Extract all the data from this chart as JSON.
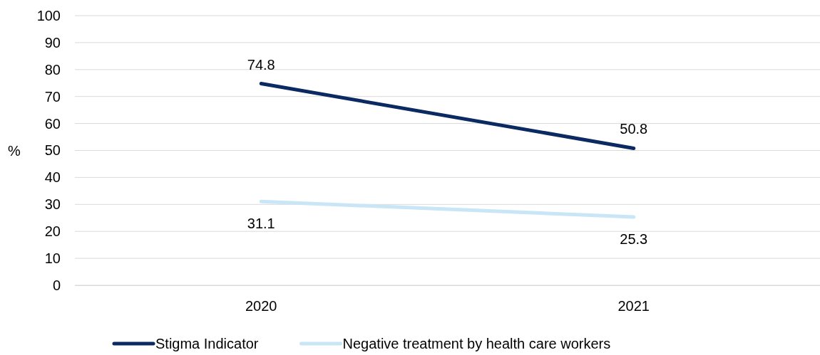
{
  "chart_data": {
    "type": "line",
    "ylabel": "%",
    "categories": [
      "2020",
      "2021"
    ],
    "series": [
      {
        "name": "Stigma Indicator",
        "color": "#0c2a62",
        "values": [
          74.8,
          50.8
        ]
      },
      {
        "name": "Negative treatment by health care workers",
        "color": "#c9e6f7",
        "values": [
          31.1,
          25.3
        ]
      }
    ],
    "ylim": [
      0,
      100
    ],
    "yticks": [
      0,
      10,
      20,
      30,
      40,
      50,
      60,
      70,
      80,
      90,
      100
    ],
    "grid": "y",
    "legend": "bottom",
    "data_labels": true,
    "marker": "none",
    "line_style": "solid"
  }
}
